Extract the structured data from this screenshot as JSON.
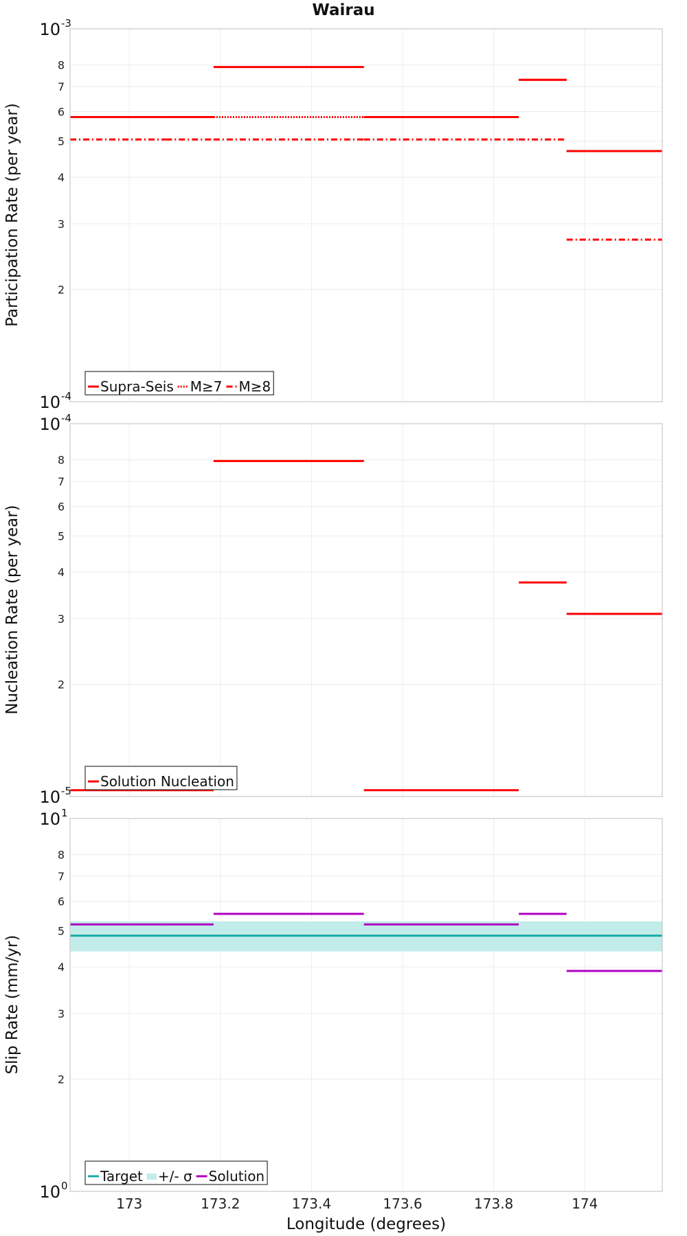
{
  "title": "Wairau",
  "x_axis": {
    "label": "Longitude (degrees)",
    "range": [
      172.87,
      174.17
    ],
    "ticks": [
      173,
      173.2,
      173.4,
      173.6,
      173.8,
      174
    ],
    "tick_labels": [
      "173",
      "173.2",
      "173.4",
      "173.6",
      "173.8",
      "174"
    ]
  },
  "colors": {
    "red": "#ff0000",
    "purple": "#b000c0",
    "teal": "#19aaa6",
    "band": "#c2ecea"
  },
  "chart_data": [
    {
      "type": "line",
      "name": "participation",
      "scale": "log",
      "ylabel": "Participation Rate (per year)",
      "ylim": [
        0.0001,
        0.001
      ],
      "decades": [
        {
          "value": 0.001,
          "base": "10",
          "exp": "-3"
        },
        {
          "value": 0.0001,
          "base": "10",
          "exp": "-4"
        }
      ],
      "minor_ticks": [
        {
          "value": 0.0008,
          "label": "8"
        },
        {
          "value": 0.0007,
          "label": "7"
        },
        {
          "value": 0.0006,
          "label": "6"
        },
        {
          "value": 0.0005,
          "label": "5"
        },
        {
          "value": 0.0004,
          "label": "4"
        },
        {
          "value": 0.0003,
          "label": "3"
        },
        {
          "value": 0.0002,
          "label": "2"
        }
      ],
      "series": [
        {
          "name": "Supra-Seis",
          "style": "solid",
          "color": "#ff0000",
          "segments": [
            {
              "x0": 172.87,
              "x1": 173.08,
              "y": 0.00058
            },
            {
              "x0": 173.08,
              "x1": 173.185,
              "y": 0.00058
            },
            {
              "x0": 173.185,
              "x1": 173.515,
              "y": 0.00079
            },
            {
              "x0": 173.515,
              "x1": 173.855,
              "y": 0.00058
            },
            {
              "x0": 173.855,
              "x1": 173.96,
              "y": 0.00073
            },
            {
              "x0": 173.96,
              "x1": 174.17,
              "y": 0.00047
            }
          ]
        },
        {
          "name": "M≥7",
          "style": "dotted",
          "color": "#ff0000",
          "segments": [
            {
              "x0": 172.87,
              "x1": 173.08,
              "y": 0.00058
            },
            {
              "x0": 173.08,
              "x1": 173.185,
              "y": 0.00058
            },
            {
              "x0": 173.185,
              "x1": 173.515,
              "y": 0.00058
            },
            {
              "x0": 173.515,
              "x1": 173.855,
              "y": 0.00058
            },
            {
              "x0": 173.855,
              "x1": 173.96,
              "y": 0.00073
            },
            {
              "x0": 173.96,
              "x1": 174.17,
              "y": 0.00047
            }
          ]
        },
        {
          "name": "M≥8",
          "style": "dashdot",
          "color": "#ff0000",
          "segments": [
            {
              "x0": 172.87,
              "x1": 173.08,
              "y": 0.000505
            },
            {
              "x0": 173.08,
              "x1": 173.185,
              "y": 0.000505
            },
            {
              "x0": 173.185,
              "x1": 173.515,
              "y": 0.000505
            },
            {
              "x0": 173.515,
              "x1": 173.855,
              "y": 0.000505
            },
            {
              "x0": 173.855,
              "x1": 173.96,
              "y": 0.000505
            },
            {
              "x0": 173.96,
              "x1": 174.17,
              "y": 0.000272
            }
          ]
        }
      ],
      "legend": {
        "position": "bottom-left",
        "entries": [
          "Supra-Seis",
          "M≥7",
          "M≥8"
        ]
      }
    },
    {
      "type": "line",
      "name": "nucleation",
      "scale": "log",
      "ylabel": "Nucleation Rate (per year)",
      "ylim": [
        1e-05,
        0.0001
      ],
      "decades": [
        {
          "value": 0.0001,
          "base": "10",
          "exp": "-4"
        },
        {
          "value": 1e-05,
          "base": "10",
          "exp": "-5"
        }
      ],
      "minor_ticks": [
        {
          "value": 8e-05,
          "label": "8"
        },
        {
          "value": 7e-05,
          "label": "7"
        },
        {
          "value": 6e-05,
          "label": "6"
        },
        {
          "value": 5e-05,
          "label": "5"
        },
        {
          "value": 4e-05,
          "label": "4"
        },
        {
          "value": 3e-05,
          "label": "3"
        },
        {
          "value": 2e-05,
          "label": "2"
        }
      ],
      "series": [
        {
          "name": "Solution Nucleation",
          "style": "solid",
          "color": "#ff0000",
          "segments": [
            {
              "x0": 172.87,
              "x1": 173.185,
              "y": 1.04e-05
            },
            {
              "x0": 173.185,
              "x1": 173.515,
              "y": 7.94e-05
            },
            {
              "x0": 173.515,
              "x1": 173.855,
              "y": 1.04e-05
            },
            {
              "x0": 173.855,
              "x1": 173.96,
              "y": 3.75e-05
            },
            {
              "x0": 173.96,
              "x1": 174.17,
              "y": 3.09e-05
            }
          ]
        }
      ],
      "legend": {
        "position": "bottom-left",
        "entries": [
          "Solution Nucleation"
        ]
      }
    },
    {
      "type": "line",
      "name": "slip",
      "scale": "log",
      "ylabel": "Slip Rate (mm/yr)",
      "ylim": [
        1,
        10
      ],
      "decades": [
        {
          "value": 10,
          "base": "10",
          "exp": "1"
        },
        {
          "value": 1,
          "base": "10",
          "exp": "0"
        }
      ],
      "minor_ticks": [
        {
          "value": 8,
          "label": "8"
        },
        {
          "value": 7,
          "label": "7"
        },
        {
          "value": 6,
          "label": "6"
        },
        {
          "value": 5,
          "label": "5"
        },
        {
          "value": 4,
          "label": "4"
        },
        {
          "value": 3,
          "label": "3"
        },
        {
          "value": 2,
          "label": "2"
        }
      ],
      "band": {
        "name": "+/- σ",
        "low": 4.4,
        "high": 5.3,
        "color": "#c2ecea"
      },
      "series": [
        {
          "name": "Target",
          "style": "solid",
          "color": "#19aaa6",
          "segments": [
            {
              "x0": 172.87,
              "x1": 174.17,
              "y": 4.85
            }
          ]
        },
        {
          "name": "Solution",
          "style": "solid",
          "color": "#b000c0",
          "segments": [
            {
              "x0": 172.87,
              "x1": 173.08,
              "y": 5.2
            },
            {
              "x0": 173.08,
              "x1": 173.185,
              "y": 5.2
            },
            {
              "x0": 173.185,
              "x1": 173.515,
              "y": 5.55
            },
            {
              "x0": 173.515,
              "x1": 173.855,
              "y": 5.2
            },
            {
              "x0": 173.855,
              "x1": 173.96,
              "y": 5.55
            },
            {
              "x0": 173.96,
              "x1": 174.17,
              "y": 3.9
            }
          ]
        }
      ],
      "legend": {
        "position": "bottom-left",
        "entries": [
          "Target",
          "+/- σ",
          "Solution"
        ]
      }
    }
  ]
}
